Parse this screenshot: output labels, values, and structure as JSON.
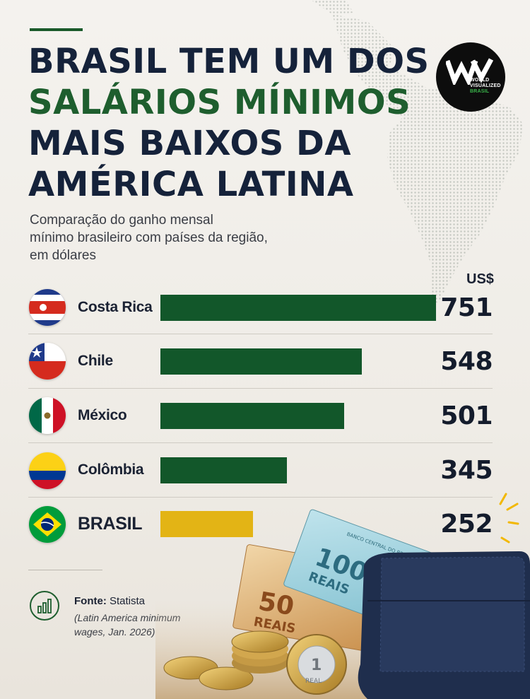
{
  "title": {
    "line1": "BRASIL TEM UM DOS",
    "line2_highlight": "SALÁRIOS MÍNIMOS",
    "line3": "MAIS BAIXOS DA",
    "line4": "AMÉRICA LATINA"
  },
  "subtitle": {
    "line1": "Comparação do ganho mensal",
    "line2": "mínimo brasileiro com países da região,",
    "line3": "em dólares"
  },
  "logo": {
    "line1": "WORLD",
    "line2": "VISUALIZED",
    "line3": "BRASIL"
  },
  "colors": {
    "bar_default": "#12572a",
    "bar_highlight": "#e3b415",
    "title_dark": "#15223a",
    "title_green": "#1e5e2e"
  },
  "chart_data": {
    "type": "bar",
    "orientation": "horizontal",
    "unit_label": "US$",
    "categories": [
      "Costa Rica",
      "Chile",
      "México",
      "Colômbia",
      "BRASIL"
    ],
    "values": [
      751,
      548,
      501,
      345,
      252
    ],
    "value_labels": [
      "751",
      "548",
      "501",
      "345",
      "252"
    ],
    "highlight_index": 4,
    "xlim": [
      0,
      751
    ],
    "grid": false
  },
  "flags": [
    "costa-rica",
    "chile",
    "mexico",
    "colombia",
    "brazil"
  ],
  "source": {
    "label": "Fonte:",
    "name": "Statista",
    "detail_line1": "(Latin America minimum",
    "detail_line2": "wages, Jan. 2026)"
  },
  "illustration": {
    "note_100_value": "100",
    "note_100_word": "REAIS",
    "note_100_band": "BANCO CENTRAL DO BRASIL",
    "note_50_value": "50",
    "note_50_word": "REAIS",
    "coin_value": "1",
    "coin_word": "REAL"
  }
}
